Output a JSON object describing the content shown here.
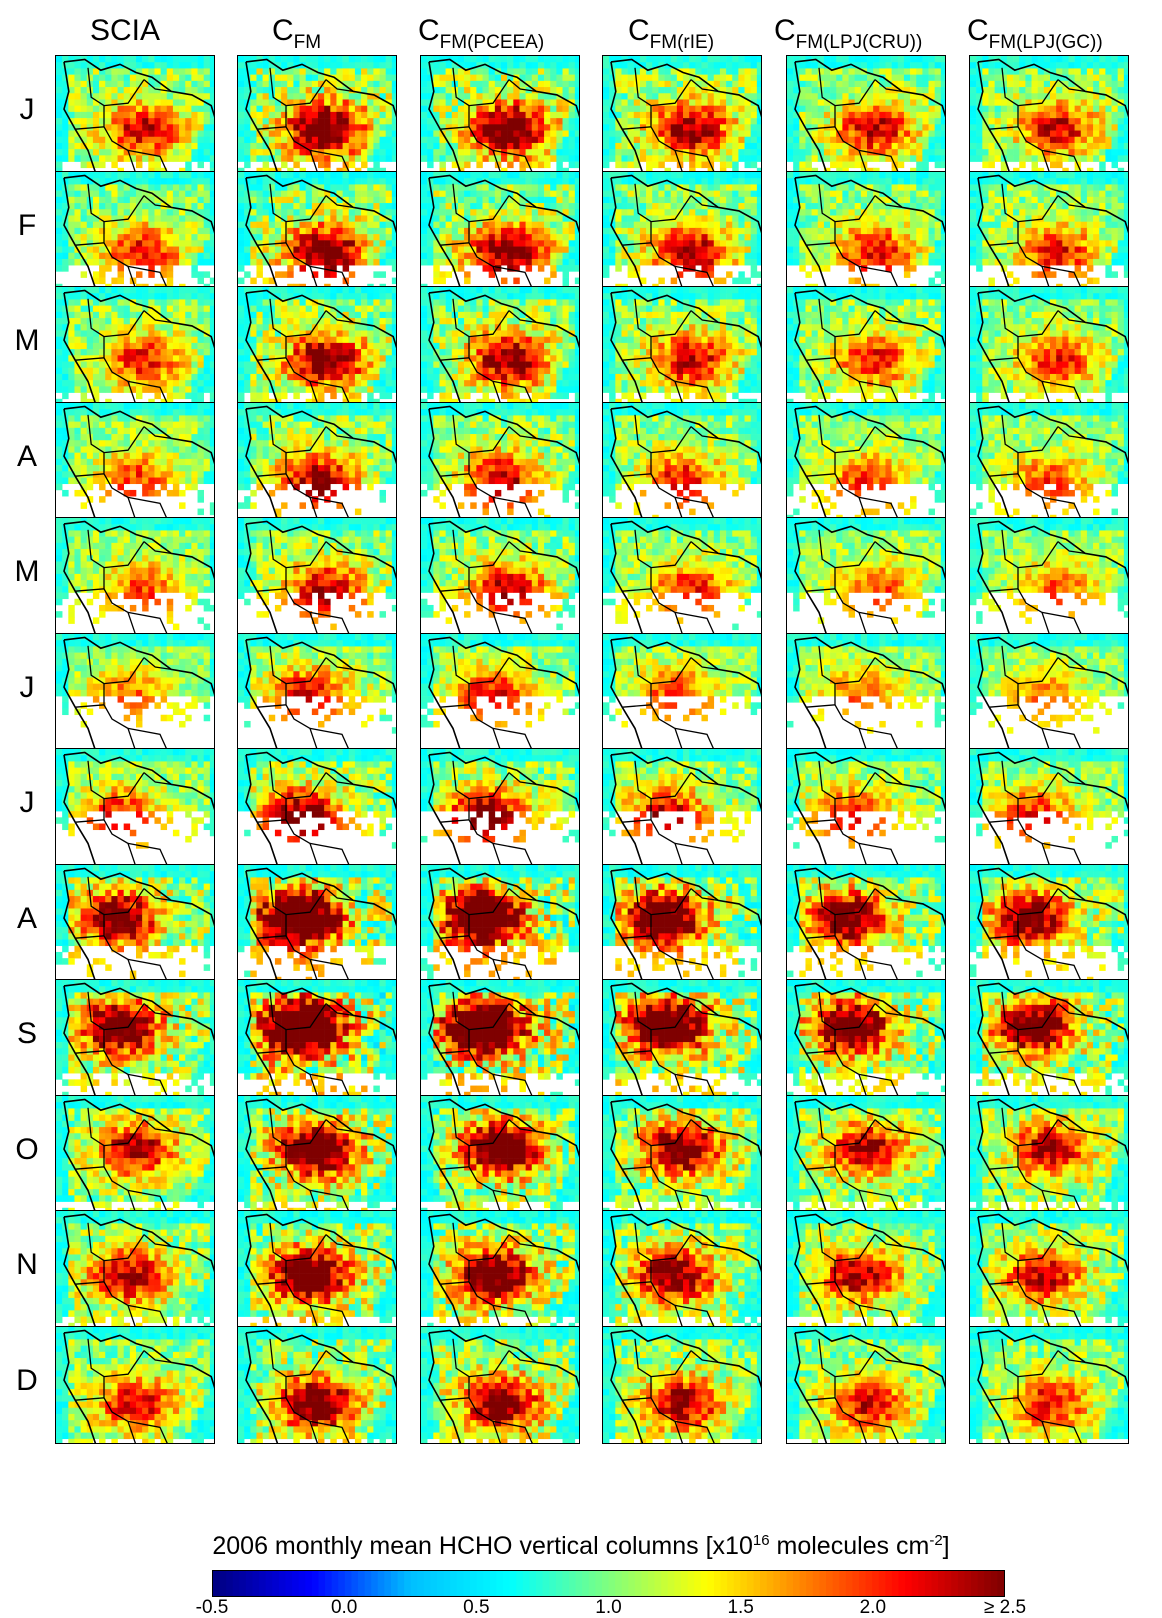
{
  "chart_data": {
    "type": "heatmap",
    "title": "2006 monthly mean HCHO vertical columns [x10",
    "title_exponent": "16",
    "title_units": " molecules cm",
    "title_units_exponent": "-2",
    "title_end": "]",
    "columns": [
      {
        "main": "SCIA",
        "sub": ""
      },
      {
        "main": "C",
        "sub": "FM"
      },
      {
        "main": "C",
        "sub": "FM(PCEEA)"
      },
      {
        "main": "C",
        "sub": "FM(rIE)"
      },
      {
        "main": "C",
        "sub": "FM(LPJ(CRU))"
      },
      {
        "main": "C",
        "sub": "FM(LPJ(GC))"
      }
    ],
    "rows": [
      "J",
      "F",
      "M",
      "A",
      "M",
      "J",
      "J",
      "A",
      "S",
      "O",
      "N",
      "D"
    ],
    "colorbar": {
      "range": [
        -0.5,
        2.5
      ],
      "tick_labels": [
        "-0.5",
        "0.0",
        "0.5",
        "1.0",
        "1.5",
        "2.0",
        "≥ 2.5"
      ],
      "tick_values": [
        -0.5,
        0.0,
        0.5,
        1.0,
        1.5,
        2.0,
        2.5
      ],
      "colormap": [
        "#00007f",
        "#0000ff",
        "#00bfff",
        "#00ffff",
        "#7fff7f",
        "#ffff00",
        "#ff7f00",
        "#ff0000",
        "#7f0000"
      ]
    },
    "background_value": 0.7,
    "col_scale": [
      0.85,
      1.25,
      1.2,
      1.0,
      0.85,
      0.82
    ],
    "month_intensity": [
      1.15,
      1.05,
      1.0,
      0.85,
      0.8,
      0.7,
      0.95,
      1.6,
      1.8,
      1.3,
      1.25,
      1.1
    ],
    "month_center": [
      [
        0.55,
        0.62
      ],
      [
        0.55,
        0.68
      ],
      [
        0.55,
        0.62
      ],
      [
        0.5,
        0.65
      ],
      [
        0.55,
        0.6
      ],
      [
        0.45,
        0.5
      ],
      [
        0.4,
        0.55
      ],
      [
        0.38,
        0.45
      ],
      [
        0.4,
        0.4
      ],
      [
        0.5,
        0.45
      ],
      [
        0.45,
        0.55
      ],
      [
        0.5,
        0.65
      ]
    ],
    "missing_data_bottom": [
      0.08,
      0.2,
      0.1,
      0.3,
      0.35,
      0.45,
      0.45,
      0.3,
      0.2,
      0.08,
      0.1,
      0.06
    ]
  }
}
